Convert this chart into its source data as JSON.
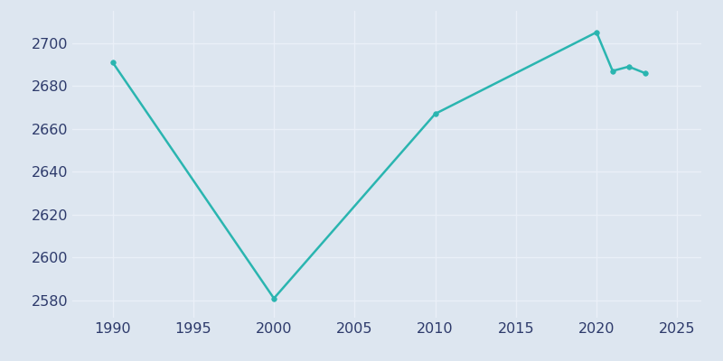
{
  "years": [
    1990,
    2000,
    2010,
    2020,
    2021,
    2022,
    2023
  ],
  "population": [
    2691,
    2581,
    2667,
    2705,
    2687,
    2689,
    2686
  ],
  "line_color": "#2ab5b0",
  "marker_color": "#2ab5b0",
  "marker_size": 4,
  "bg_color": "#dde6f0",
  "plot_bg_color": "#dde6f0",
  "line_width": 1.8,
  "xlim": [
    1987.5,
    2026.5
  ],
  "ylim": [
    2572,
    2715
  ],
  "yticks": [
    2580,
    2600,
    2620,
    2640,
    2660,
    2680,
    2700
  ],
  "xticks": [
    1990,
    1995,
    2000,
    2005,
    2010,
    2015,
    2020,
    2025
  ],
  "tick_color": "#2d3a6b",
  "tick_fontsize": 11.5,
  "grid_color": "#eaf0f8",
  "grid_linewidth": 1.0
}
